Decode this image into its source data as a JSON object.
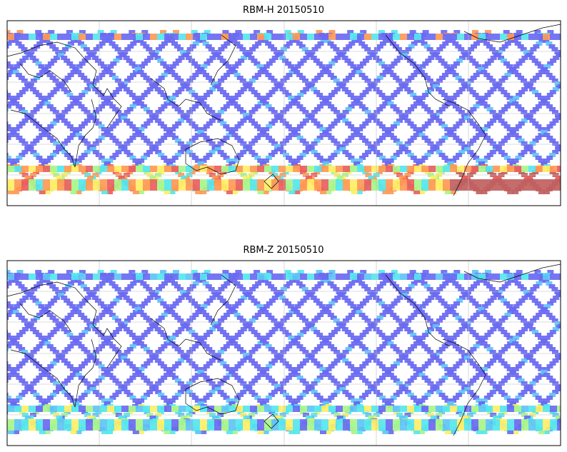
{
  "panels": [
    {
      "title": "RBM-H 20150510",
      "hot_south": true
    },
    {
      "title": "RBM-Z 20150510",
      "hot_south": false
    }
  ],
  "colors": {
    "track_low": "#6a6af2",
    "track_mid": "#5fc4f5",
    "cyan": "#55e6ee",
    "green": "#a8f58a",
    "yellow": "#ffee66",
    "orange": "#ff9955",
    "red": "#e86060",
    "high": "#c06060",
    "coast": "#000000",
    "grid": "#bdbdbd"
  }
}
